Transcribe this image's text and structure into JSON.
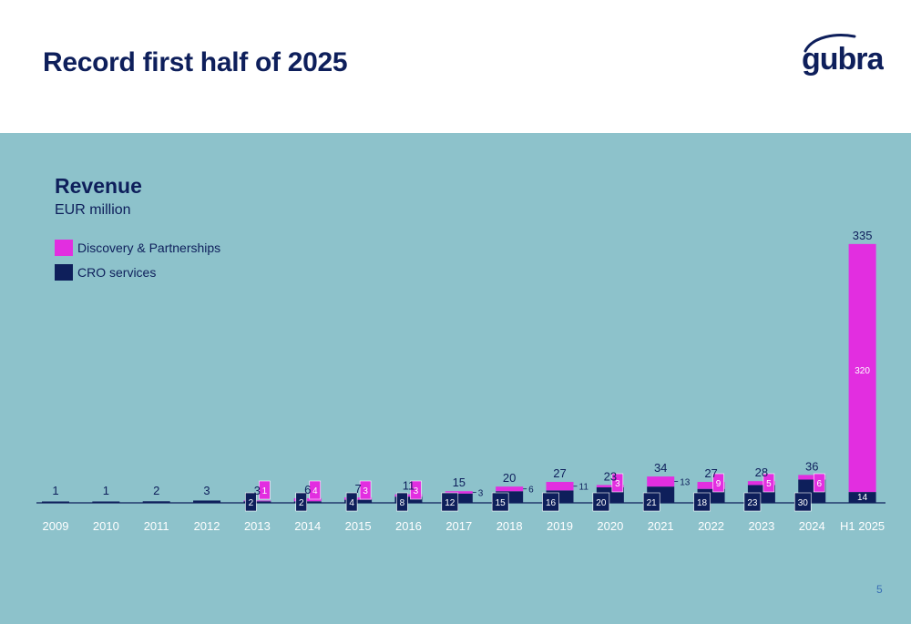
{
  "slide": {
    "title": "Record first half of 2025",
    "logo_text": "gubra",
    "page_number": "5"
  },
  "colors": {
    "navy": "#0e1f5b",
    "magenta": "#e22ee0",
    "panel": "#8dc2cb",
    "white": "#ffffff"
  },
  "chart_data": {
    "type": "bar",
    "stacked": true,
    "title": "Revenue",
    "subtitle": "EUR million",
    "ylim": [
      0,
      340
    ],
    "legend_position": "top-left",
    "categories": [
      "2009",
      "2010",
      "2011",
      "2012",
      "2013",
      "2014",
      "2015",
      "2016",
      "2017",
      "2018",
      "2019",
      "2020",
      "2021",
      "2022",
      "2023",
      "2024",
      "H1 2025"
    ],
    "series": [
      {
        "name": "CRO services",
        "color": "#0e1f5b",
        "values": [
          1,
          1,
          2,
          3,
          2,
          2,
          4,
          8,
          12,
          15,
          16,
          20,
          21,
          18,
          23,
          30,
          14
        ],
        "labels": [
          "",
          "",
          "",
          "",
          "2",
          "2",
          "4",
          "8",
          "12",
          "15",
          "16",
          "20",
          "21",
          "18",
          "23",
          "30",
          "14"
        ]
      },
      {
        "name": "Discovery & Partnerships",
        "color": "#e22ee0",
        "values": [
          0,
          0,
          0,
          0,
          1,
          4,
          3,
          3,
          3,
          6,
          11,
          3,
          13,
          9,
          5,
          6,
          320
        ],
        "labels": [
          "",
          "",
          "",
          "",
          "1",
          "4",
          "3",
          "3",
          "3",
          "6",
          "11",
          "3",
          "13",
          "9",
          "5",
          "6",
          "320"
        ]
      }
    ],
    "totals": [
      "1",
      "1",
      "2",
      "3",
      "3",
      "6",
      "7",
      "11",
      "15",
      "20",
      "27",
      "23",
      "34",
      "27",
      "28",
      "36",
      "335"
    ]
  }
}
